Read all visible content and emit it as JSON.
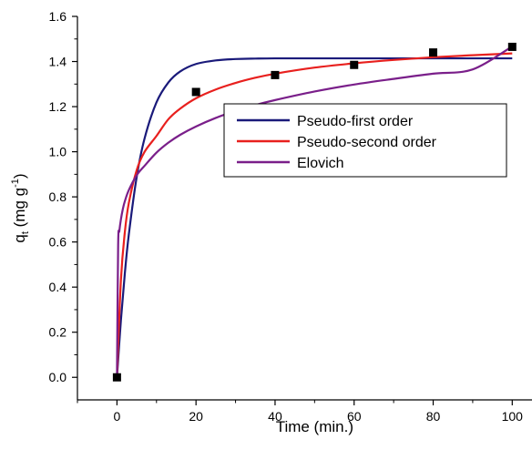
{
  "chart_data": {
    "type": "line",
    "xlabel": "Time (min.)",
    "ylabel": {
      "main": "q",
      "sub": "t",
      "unit_pre": " (mg g",
      "sup": "-1",
      "unit_post": ")"
    },
    "xlim": [
      -10,
      105
    ],
    "ylim": [
      -0.1,
      1.6
    ],
    "xticks": [
      0,
      20,
      40,
      60,
      80,
      100
    ],
    "yticks": [
      0.0,
      0.2,
      0.4,
      0.6,
      0.8,
      1.0,
      1.2,
      1.4,
      1.6
    ],
    "xtick_labels": [
      "0",
      "20",
      "40",
      "60",
      "80",
      "100"
    ],
    "ytick_labels": [
      "0.0",
      "0.2",
      "0.4",
      "0.6",
      "0.8",
      "1.0",
      "1.2",
      "1.4",
      "1.6"
    ],
    "grid": false,
    "legend_position": "center-right",
    "observed": {
      "marker": "square",
      "color": "#000000",
      "x": [
        0,
        20,
        40,
        60,
        80,
        100
      ],
      "y": [
        0.0,
        1.265,
        1.34,
        1.385,
        1.44,
        1.465
      ]
    },
    "series": [
      {
        "name": "Pseudo-first order",
        "color": "#1a1a7a",
        "x": [
          0,
          1,
          2,
          3,
          5,
          7,
          10,
          13,
          16,
          20,
          25,
          30,
          35,
          40,
          50,
          60,
          70,
          80,
          90,
          100
        ],
        "y": [
          0.0,
          0.253,
          0.462,
          0.633,
          0.889,
          1.06,
          1.219,
          1.307,
          1.356,
          1.389,
          1.405,
          1.411,
          1.413,
          1.414,
          1.414,
          1.414,
          1.414,
          1.414,
          1.414,
          1.414
        ]
      },
      {
        "name": "Pseudo-second order",
        "color": "#e8201e",
        "x": [
          0,
          1,
          2,
          3,
          5,
          7,
          10,
          13,
          16,
          20,
          25,
          30,
          35,
          40,
          50,
          60,
          70,
          80,
          90,
          100
        ],
        "y": [
          0.0,
          0.431,
          0.645,
          0.773,
          0.919,
          1.0,
          1.07,
          1.144,
          1.191,
          1.237,
          1.276,
          1.305,
          1.328,
          1.346,
          1.373,
          1.392,
          1.407,
          1.419,
          1.428,
          1.436
        ]
      },
      {
        "name": "Elovich",
        "color": "#7a1f8a",
        "x": [
          0,
          0.3,
          0.6,
          1,
          1.5,
          2,
          3,
          5,
          7,
          10,
          13,
          16,
          20,
          25,
          30,
          35,
          40,
          50,
          60,
          70,
          80,
          90,
          100
        ],
        "y": [
          0.0,
          0.586,
          0.648,
          0.7,
          0.747,
          0.781,
          0.83,
          0.896,
          0.938,
          0.996,
          1.04,
          1.075,
          1.112,
          1.15,
          1.181,
          1.207,
          1.229,
          1.267,
          1.298,
          1.323,
          1.346,
          1.365,
          1.467
        ]
      }
    ]
  }
}
